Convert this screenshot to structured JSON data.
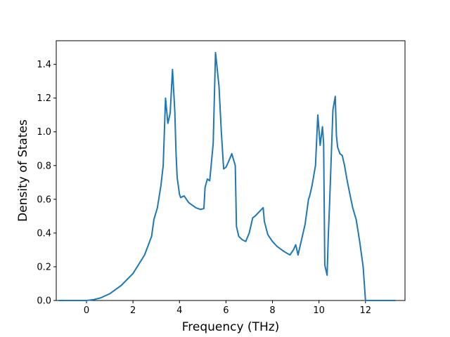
{
  "chart_data": {
    "type": "line",
    "title": "",
    "xlabel": "Frequency (THz)",
    "ylabel": "Density of States",
    "xlim": [
      -1.3,
      13.7
    ],
    "ylim": [
      0.0,
      1.54
    ],
    "xticks": [
      0,
      2,
      4,
      6,
      8,
      10,
      12
    ],
    "xtick_labels": [
      "0",
      "2",
      "4",
      "6",
      "8",
      "10",
      "12"
    ],
    "yticks": [
      0.0,
      0.2,
      0.4,
      0.6,
      0.8,
      1.0,
      1.2,
      1.4
    ],
    "ytick_labels": [
      "0.0",
      "0.2",
      "0.4",
      "0.6",
      "0.8",
      "1.0",
      "1.2",
      "1.4"
    ],
    "grid": false,
    "series": [
      {
        "color": "#1f77b4",
        "x": [
          -1.2,
          0.0,
          0.3,
          0.6,
          1.0,
          1.5,
          2.0,
          2.5,
          2.8,
          2.9,
          3.05,
          3.2,
          3.3,
          3.4,
          3.5,
          3.6,
          3.7,
          3.8,
          3.85,
          3.9,
          4.0,
          4.05,
          4.2,
          4.4,
          4.7,
          4.9,
          5.05,
          5.1,
          5.2,
          5.3,
          5.45,
          5.55,
          5.7,
          5.8,
          5.9,
          6.0,
          6.1,
          6.25,
          6.4,
          6.45,
          6.55,
          6.7,
          6.85,
          7.0,
          7.15,
          7.25,
          7.6,
          7.65,
          7.8,
          8.0,
          8.2,
          8.5,
          8.75,
          8.9,
          9.0,
          9.1,
          9.2,
          9.4,
          9.55,
          9.6,
          9.7,
          9.85,
          9.95,
          10.05,
          10.15,
          10.2,
          10.25,
          10.35,
          10.4,
          10.45,
          10.6,
          10.7,
          10.75,
          10.8,
          10.9,
          11.0,
          11.1,
          11.2,
          11.3,
          11.45,
          11.6,
          11.75,
          11.9,
          12.0,
          13.3
        ],
        "y": [
          0.0,
          0.0,
          0.005,
          0.015,
          0.04,
          0.09,
          0.16,
          0.27,
          0.38,
          0.48,
          0.55,
          0.68,
          0.8,
          1.2,
          1.05,
          1.11,
          1.37,
          1.12,
          0.88,
          0.73,
          0.63,
          0.61,
          0.62,
          0.58,
          0.55,
          0.54,
          0.545,
          0.67,
          0.72,
          0.71,
          0.93,
          1.47,
          1.27,
          1.0,
          0.78,
          0.79,
          0.82,
          0.87,
          0.8,
          0.44,
          0.38,
          0.36,
          0.35,
          0.4,
          0.49,
          0.5,
          0.55,
          0.47,
          0.39,
          0.35,
          0.32,
          0.29,
          0.27,
          0.3,
          0.33,
          0.27,
          0.33,
          0.45,
          0.6,
          0.62,
          0.68,
          0.8,
          1.1,
          0.92,
          1.03,
          0.93,
          0.21,
          0.15,
          0.38,
          0.55,
          1.13,
          1.21,
          0.98,
          0.91,
          0.87,
          0.86,
          0.8,
          0.72,
          0.65,
          0.55,
          0.48,
          0.35,
          0.2,
          0.0,
          0.0
        ]
      }
    ]
  }
}
